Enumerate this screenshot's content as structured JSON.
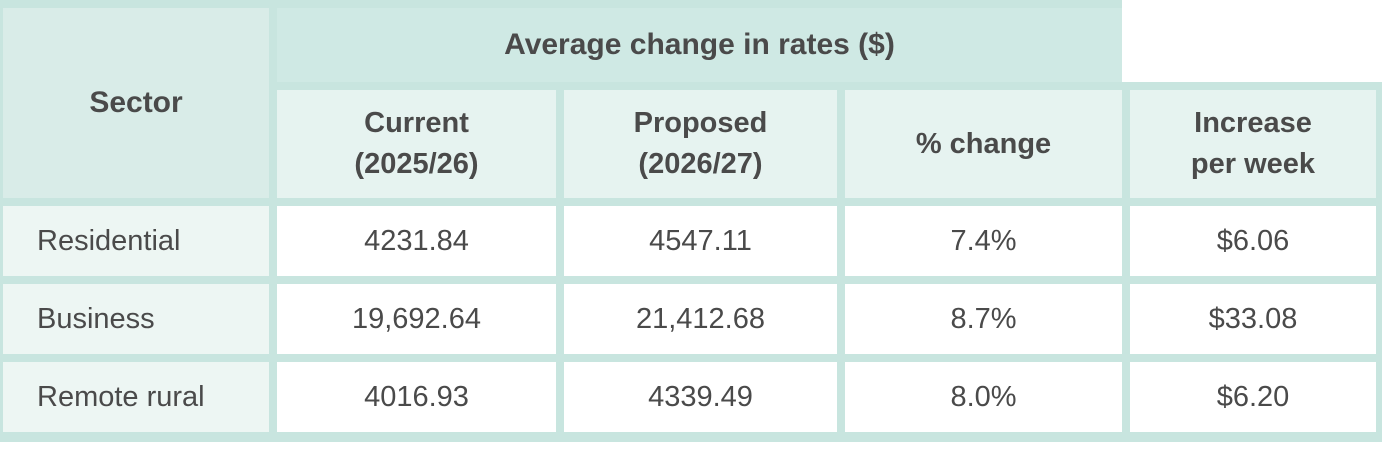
{
  "table": {
    "header": {
      "sector": "Sector",
      "group": "Average change in rates ($)",
      "sub": {
        "current": "Current\n(2025/26)",
        "proposed": "Proposed\n(2026/27)",
        "pct_change": "% change",
        "increase": "Increase\nper week"
      }
    },
    "rows": [
      {
        "sector": "Residential",
        "current": "4231.84",
        "proposed": "4547.11",
        "pct_change": "7.4%",
        "increase_per_week": "$6.06"
      },
      {
        "sector": "Business",
        "current": "19,692.64",
        "proposed": "21,412.68",
        "pct_change": "8.7%",
        "increase_per_week": "$33.08"
      },
      {
        "sector": "Remote rural",
        "current": "4016.93",
        "proposed": "4339.49",
        "pct_change": "8.0%",
        "increase_per_week": "$6.20"
      }
    ],
    "colors": {
      "gutter_mint": "#c8e5df",
      "group_header_bg": "#cfe9e4",
      "sector_header_bg": "#d9ece8",
      "subheader_bg": "#e6f3f0",
      "sector_cell_bg": "#edf6f3",
      "data_cell_bg": "#ffffff",
      "text": "#4a4a4a"
    }
  },
  "chart_data": {
    "type": "table",
    "title": "Average change in rates ($)",
    "columns": [
      "Sector",
      "Current (2025/26)",
      "Proposed (2026/27)",
      "% change",
      "Increase per week"
    ],
    "rows": [
      [
        "Residential",
        4231.84,
        4547.11,
        "7.4%",
        "$6.06"
      ],
      [
        "Business",
        19692.64,
        21412.68,
        "8.7%",
        "$33.08"
      ],
      [
        "Remote rural",
        4016.93,
        4339.49,
        "8.0%",
        "$6.20"
      ]
    ],
    "notes": "Increase per week column sits outside the 'Average change in rates ($)' spanning header"
  }
}
